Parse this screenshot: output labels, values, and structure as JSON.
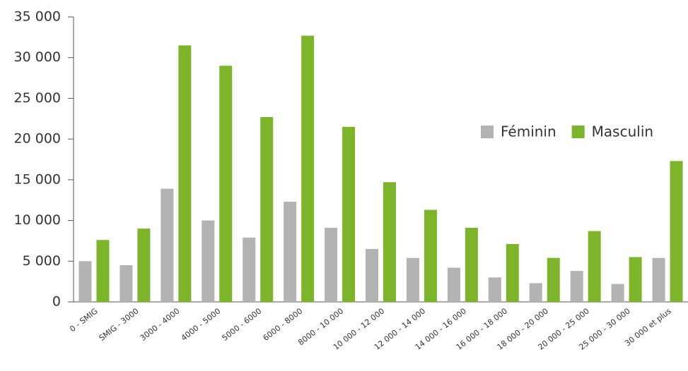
{
  "chart_data": {
    "type": "bar",
    "categories": [
      "0 - SMIG",
      "SMIG - 3000",
      "3000 - 4000",
      "4000 - 5000",
      "5000 - 6000",
      "6000 - 8000",
      "8000 - 10 000",
      "10 000 - 12 000",
      "12 000 - 14 000",
      "14 000 - 16 000",
      "16 000 - 18 000",
      "18 000 - 20 000",
      "20 000 - 25 000",
      "25 000 - 30 000",
      "30 000 et plus"
    ],
    "series": [
      {
        "name": "Féminin",
        "color": "#b3b3b3",
        "values": [
          5000,
          4500,
          13900,
          10000,
          7900,
          12300,
          9100,
          6500,
          5400,
          4200,
          3000,
          2300,
          3800,
          2200,
          5400
        ]
      },
      {
        "name": "Masculin",
        "color": "#7cb52a",
        "values": [
          7600,
          9000,
          31500,
          29000,
          22700,
          32700,
          21500,
          14700,
          11300,
          9100,
          7100,
          5400,
          8700,
          5500,
          17300
        ]
      }
    ],
    "ylim": [
      0,
      35000
    ],
    "yticks": [
      0,
      {
        "value": 5000,
        "label": "5 000"
      },
      {
        "value": 10000,
        "label": "10 000"
      },
      {
        "value": 15000,
        "label": "15 000"
      },
      {
        "value": 20000,
        "label": "20 000"
      },
      {
        "value": 25000,
        "label": "25 000"
      },
      {
        "value": 30000,
        "label": "30 000"
      },
      {
        "value": 35000,
        "label": "35 000"
      }
    ],
    "legend": "right"
  }
}
